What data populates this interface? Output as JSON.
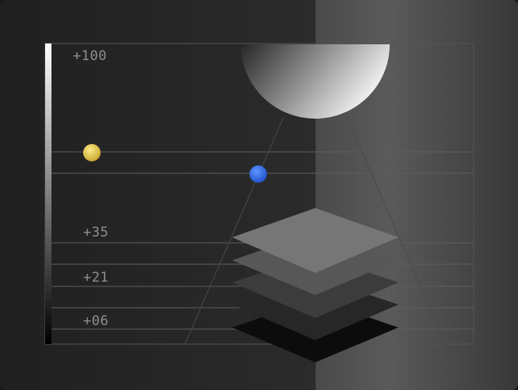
{
  "scale": {
    "top_label": "+100",
    "labels": [
      "+35",
      "+21",
      "+06"
    ]
  },
  "markers": [
    {
      "name": "yellow-marker",
      "color": "#e8c94a"
    },
    {
      "name": "blue-marker",
      "color": "#2f6ef0"
    }
  ],
  "layers": {
    "count": 5
  },
  "colors": {
    "background_left": "#202020",
    "background_right": "#505050",
    "grid_line": "#5a5a5a",
    "label": "#8f8f8f"
  }
}
